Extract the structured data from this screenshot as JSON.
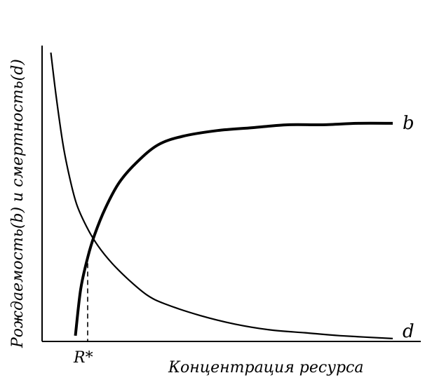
{
  "chart_data": {
    "type": "line",
    "ylabel": "Рождаемость(b) и смертность(d)",
    "xlabel": "Концентрация ресурса",
    "x_tick_label": "R*",
    "xlim": [
      0,
      10
    ],
    "ylim": [
      0,
      10
    ],
    "series": [
      {
        "name": "b",
        "x": [
          0.95,
          1.1,
          1.3,
          1.5,
          1.8,
          2.2,
          2.7,
          3.3,
          4.0,
          5.0,
          6.0,
          7.0,
          8.0,
          9.0,
          10.0
        ],
        "y": [
          0.2,
          1.8,
          2.9,
          3.7,
          4.6,
          5.5,
          6.2,
          6.8,
          7.1,
          7.3,
          7.4,
          7.5,
          7.5,
          7.55,
          7.55
        ]
      },
      {
        "name": "d",
        "x": [
          0.25,
          0.4,
          0.6,
          0.8,
          1.0,
          1.3,
          1.6,
          2.0,
          2.5,
          3.0,
          3.5,
          4.5,
          5.5,
          6.5,
          7.5,
          8.5,
          10.0
        ],
        "y": [
          10.0,
          8.5,
          6.8,
          5.6,
          4.7,
          3.9,
          3.3,
          2.7,
          2.1,
          1.6,
          1.3,
          0.9,
          0.6,
          0.4,
          0.3,
          0.2,
          0.1
        ]
      }
    ],
    "series_labels": [
      "b",
      "d"
    ],
    "r_star": 1.3
  }
}
